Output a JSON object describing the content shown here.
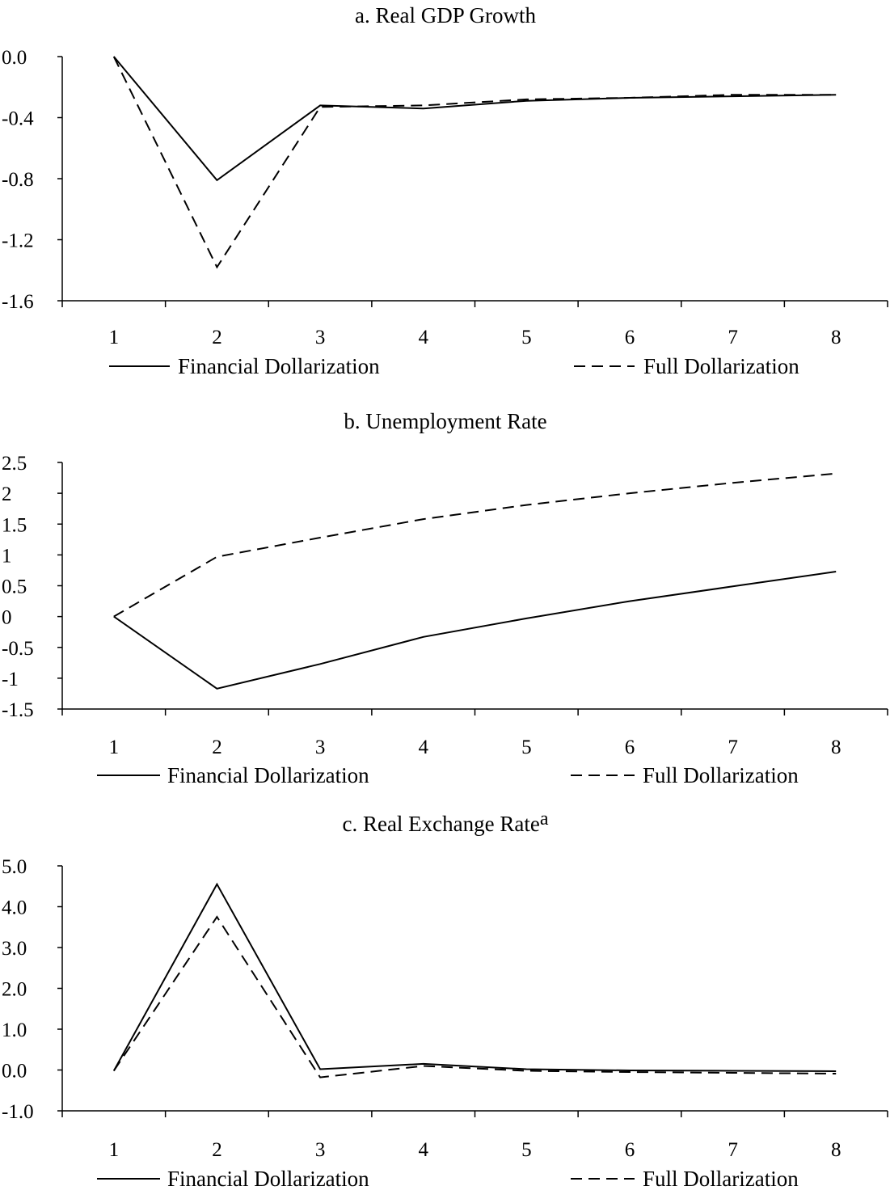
{
  "chart_data": [
    {
      "type": "line",
      "title": "a. Real GDP Growth",
      "title_sup": "",
      "x": [
        1,
        2,
        3,
        4,
        5,
        6,
        7,
        8
      ],
      "ylim": [
        -1.6,
        0.0
      ],
      "yticks": [
        0.0,
        -0.4,
        -0.8,
        -1.2,
        -1.6
      ],
      "ytick_labels": [
        "0.0",
        "-0.4",
        "-0.8",
        "-1.2",
        "-1.6"
      ],
      "series": [
        {
          "name": "Financial Dollarization",
          "style": "solid",
          "values": [
            0.0,
            -0.81,
            -0.32,
            -0.34,
            -0.29,
            -0.27,
            -0.26,
            -0.25
          ]
        },
        {
          "name": "Full Dollarization",
          "style": "dashed",
          "values": [
            0.0,
            -1.38,
            -0.33,
            -0.32,
            -0.28,
            -0.27,
            -0.25,
            -0.25
          ]
        }
      ],
      "grid": false,
      "legend": "bottom"
    },
    {
      "type": "line",
      "title": "b. Unemployment Rate",
      "title_sup": "",
      "x": [
        1,
        2,
        3,
        4,
        5,
        6,
        7,
        8
      ],
      "ylim": [
        -1.5,
        2.5
      ],
      "yticks": [
        2.5,
        2,
        1.5,
        1,
        0.5,
        0,
        -0.5,
        -1,
        -1.5
      ],
      "ytick_labels": [
        "2.5",
        "2",
        "1.5",
        "1",
        "0.5",
        "0",
        "-0.5",
        "-1",
        "-1.5"
      ],
      "series": [
        {
          "name": "Financial Dollarization",
          "style": "solid",
          "values": [
            0.0,
            -1.17,
            -0.77,
            -0.33,
            -0.03,
            0.25,
            0.49,
            0.73
          ]
        },
        {
          "name": "Full Dollarization",
          "style": "dashed",
          "values": [
            0.0,
            0.97,
            1.28,
            1.58,
            1.81,
            2.0,
            2.17,
            2.32
          ]
        }
      ],
      "grid": false,
      "legend": "bottom"
    },
    {
      "type": "line",
      "title": "c. Real Exchange Rate",
      "title_sup": "a",
      "x": [
        1,
        2,
        3,
        4,
        5,
        6,
        7,
        8
      ],
      "ylim": [
        -1.0,
        5.0
      ],
      "yticks": [
        5.0,
        4.0,
        3.0,
        2.0,
        1.0,
        0.0,
        -1.0
      ],
      "ytick_labels": [
        "5.0",
        "4.0",
        "3.0",
        "2.0",
        "1.0",
        "0.0",
        "-1.0"
      ],
      "series": [
        {
          "name": "Financial Dollarization",
          "style": "solid",
          "values": [
            -0.02,
            4.55,
            0.02,
            0.15,
            0.02,
            -0.01,
            -0.02,
            -0.03
          ]
        },
        {
          "name": "Full Dollarization",
          "style": "dashed",
          "values": [
            -0.02,
            3.75,
            -0.18,
            0.1,
            -0.02,
            -0.05,
            -0.07,
            -0.09
          ]
        }
      ],
      "grid": false,
      "legend": "bottom"
    }
  ]
}
